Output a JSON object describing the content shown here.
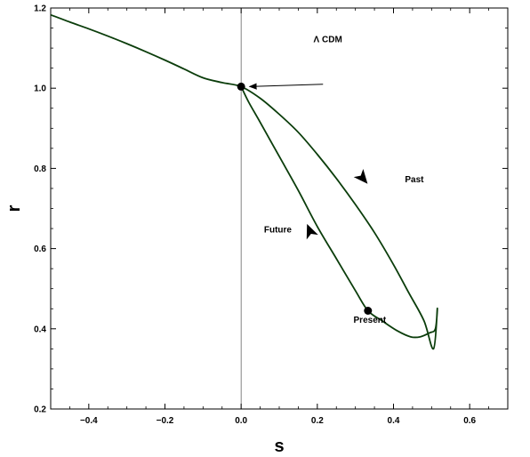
{
  "chart_data": {
    "type": "line",
    "title": "",
    "xlabel": "s",
    "ylabel": "r",
    "xlim": [
      -0.5,
      0.7
    ],
    "ylim": [
      0.2,
      1.2
    ],
    "x_ticks": [
      -0.4,
      -0.2,
      0.0,
      0.2,
      0.4,
      0.6
    ],
    "x_tick_labels": [
      "−0.4",
      "−0.2",
      "0.0",
      "0.2",
      "0.4",
      "0.6"
    ],
    "y_ticks": [
      0.2,
      0.4,
      0.6,
      0.8,
      1.0,
      1.2
    ],
    "y_tick_labels": [
      "0.2",
      "0.4",
      "0.6",
      "0.8",
      "1.0",
      "1.2"
    ],
    "grid": false,
    "reference_lines": [
      {
        "orientation": "vertical",
        "x": 0.0
      }
    ],
    "series": [
      {
        "color": "#0b3d0b",
        "x": [
          -0.5,
          -0.45,
          -0.4,
          -0.35,
          -0.3,
          -0.25,
          -0.2,
          -0.15,
          -0.1,
          -0.05,
          0.0,
          0.05,
          0.1,
          0.15,
          0.2,
          0.25,
          0.3,
          0.35,
          0.4,
          0.44,
          0.48,
          0.505,
          0.515,
          0.51,
          0.495,
          0.47,
          0.445,
          0.41,
          0.37,
          0.333,
          0.3,
          0.25,
          0.2,
          0.15,
          0.1,
          0.05,
          0.02,
          0.0
        ],
        "y": [
          1.183,
          1.165,
          1.148,
          1.13,
          1.111,
          1.091,
          1.07,
          1.048,
          1.026,
          1.014,
          1.004,
          0.975,
          0.935,
          0.89,
          0.835,
          0.775,
          0.71,
          0.64,
          0.56,
          0.49,
          0.42,
          0.35,
          0.45,
          0.4,
          0.39,
          0.38,
          0.38,
          0.395,
          0.42,
          0.445,
          0.495,
          0.575,
          0.655,
          0.745,
          0.83,
          0.915,
          0.965,
          1.004
        ]
      }
    ],
    "points": [
      {
        "name": "lcdm-point",
        "x": 0.0,
        "y": 1.004
      },
      {
        "name": "present-point",
        "x": 0.333,
        "y": 0.445
      }
    ],
    "direction_arrows": [
      {
        "name": "past-direction-arrow",
        "x": 0.32,
        "y": 0.775,
        "dx": 0.04,
        "dy": -0.045
      },
      {
        "name": "future-direction-arrow",
        "x": 0.18,
        "y": 0.645,
        "dx": -0.03,
        "dy": 0.07
      }
    ],
    "annotations": [
      {
        "text": "Λ CDM",
        "x": 0.19,
        "y": 1.115
      },
      {
        "text": "Past",
        "x": 0.43,
        "y": 0.765
      },
      {
        "text": "Future",
        "x": 0.06,
        "y": 0.64
      },
      {
        "text": "Present",
        "x": 0.295,
        "y": 0.415
      }
    ],
    "pointer_arrow": {
      "from_x": 0.215,
      "from_y": 1.01,
      "to_x": 0.022,
      "to_y": 1.004
    }
  }
}
